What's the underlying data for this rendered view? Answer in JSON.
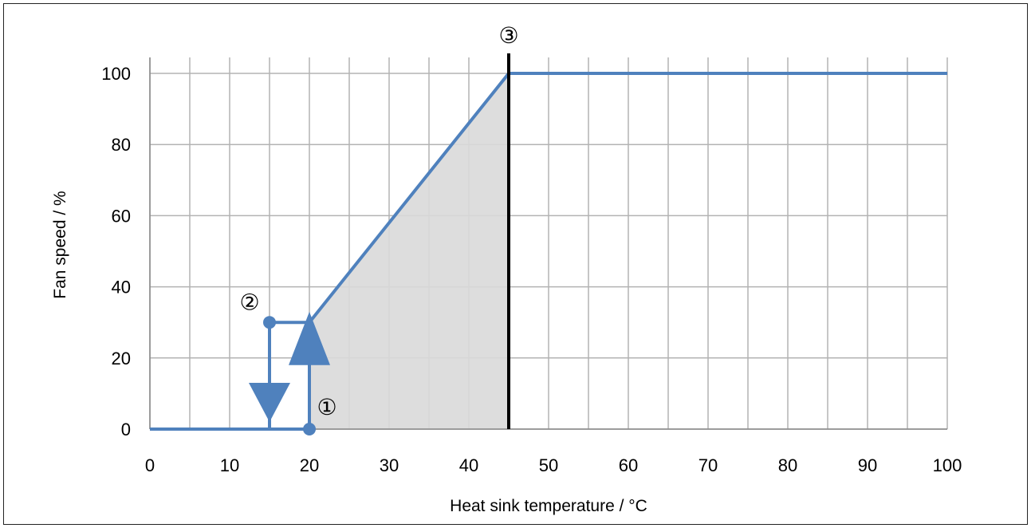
{
  "chart_data": {
    "type": "line",
    "title": "",
    "xlabel": "Heat sink temperature / °C",
    "ylabel": "Fan speed / %",
    "xlim": [
      0,
      100
    ],
    "ylim": [
      0,
      100
    ],
    "x_ticks": [
      0,
      10,
      20,
      30,
      40,
      50,
      60,
      70,
      80,
      90,
      100
    ],
    "y_ticks": [
      0,
      20,
      40,
      60,
      80,
      100
    ],
    "x_gridlines": [
      0,
      5,
      10,
      15,
      20,
      25,
      30,
      35,
      40,
      45,
      50,
      55,
      60,
      65,
      70,
      75,
      80,
      85,
      90,
      95,
      100
    ],
    "y_gridlines": [
      0,
      20,
      40,
      60,
      80,
      100
    ],
    "grid": true,
    "series": [
      {
        "points": [
          [
            0,
            0
          ],
          [
            20,
            0
          ],
          [
            20,
            30
          ],
          [
            45,
            100
          ],
          [
            100,
            100
          ]
        ],
        "color": "#4f81bd"
      },
      {
        "points": [
          [
            20,
            30
          ],
          [
            15,
            30
          ],
          [
            15,
            0
          ]
        ],
        "color": "#4f81bd"
      }
    ],
    "shaded_region": {
      "polygon": [
        [
          20,
          0
        ],
        [
          20,
          30
        ],
        [
          45,
          100
        ],
        [
          45,
          0
        ]
      ],
      "color": "#d9d9d9"
    },
    "vertical_marker": {
      "x": 45,
      "y_range": [
        0,
        104.5
      ],
      "color": "#000000"
    },
    "arrows": [
      {
        "x": 20,
        "direction": "up",
        "y_range": [
          18,
          33
        ]
      },
      {
        "x": 15,
        "direction": "down",
        "y_range": [
          13,
          2
        ]
      }
    ],
    "points": [
      {
        "x": 20,
        "y": 0
      },
      {
        "x": 15,
        "y": 30
      }
    ],
    "annotations": [
      {
        "label": "①",
        "x": 22.2,
        "y": 6
      },
      {
        "label": "②",
        "x": 12.5,
        "y": 35.5
      },
      {
        "label": "③",
        "x": 45,
        "y": 110.5
      }
    ]
  }
}
